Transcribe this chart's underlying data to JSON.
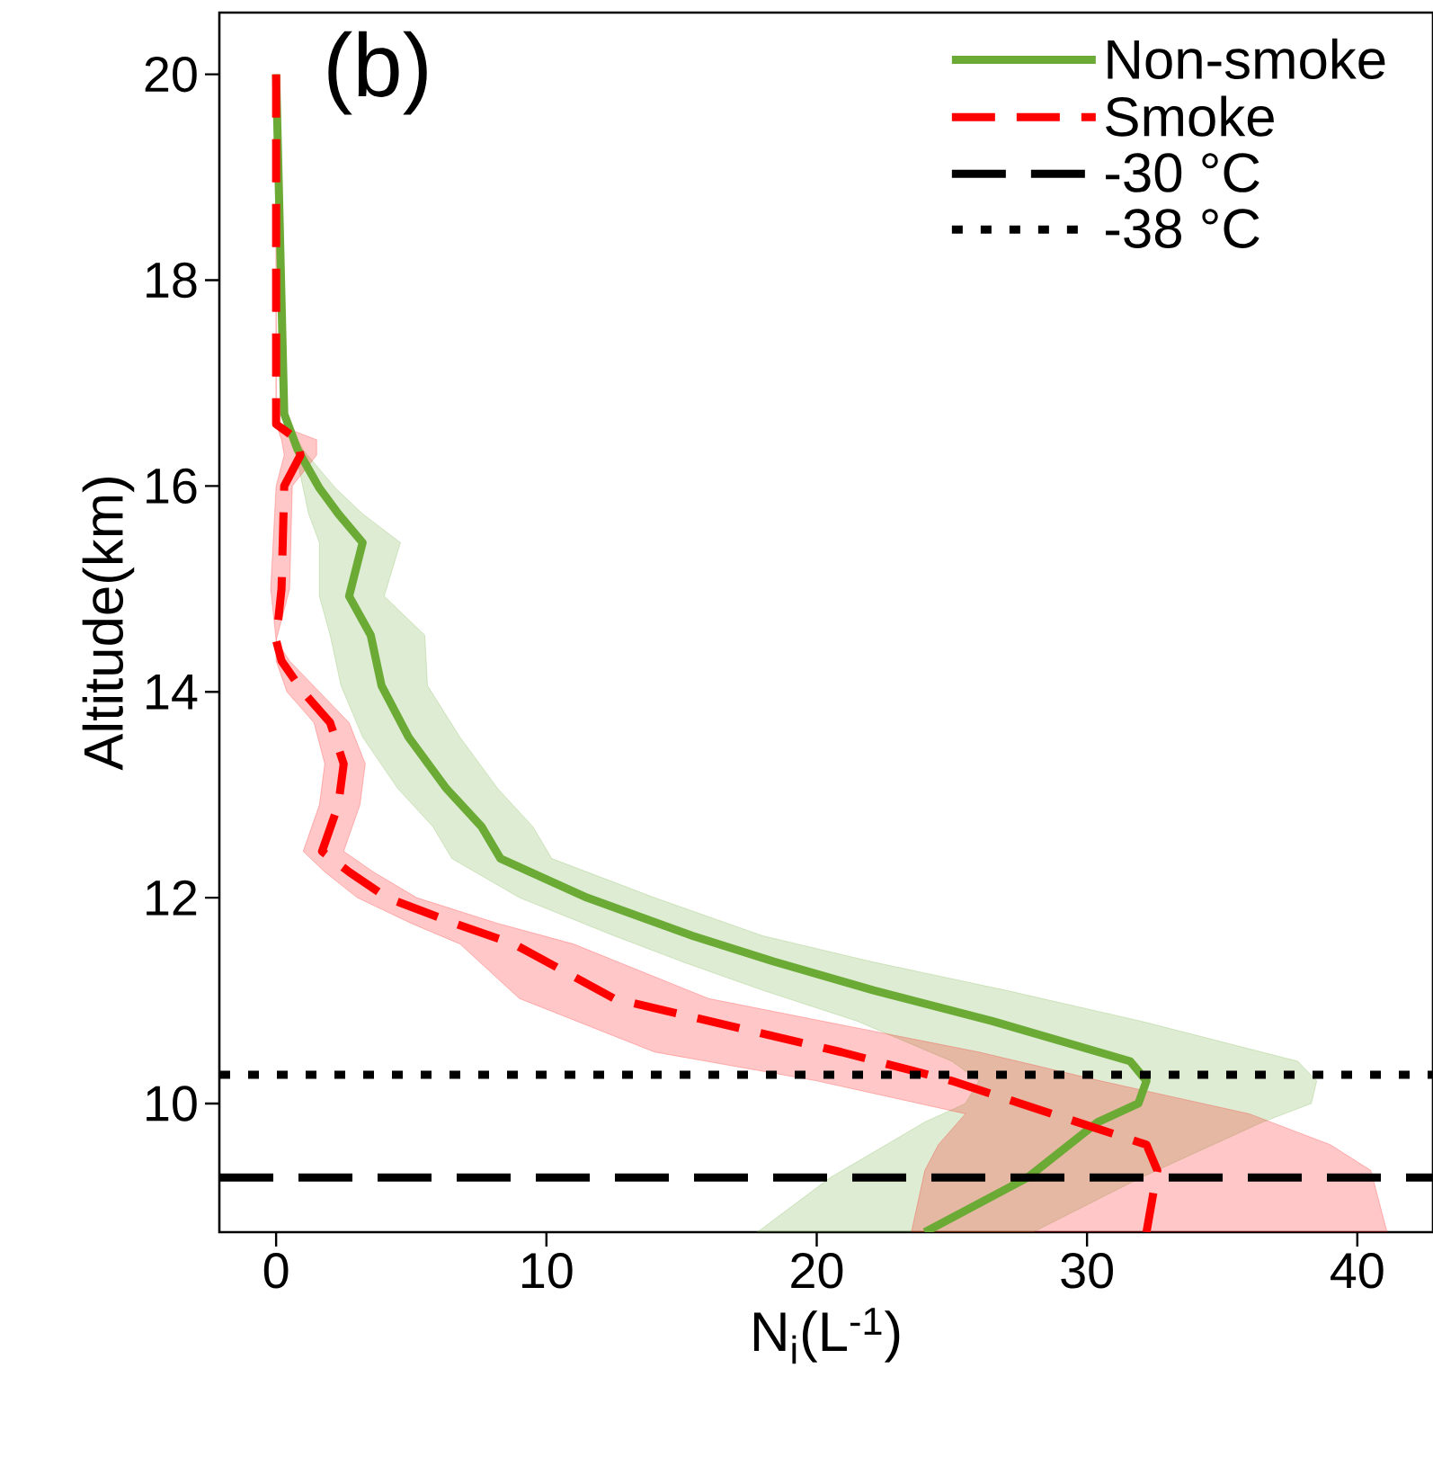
{
  "chart_data": {
    "type": "line",
    "orientation": "horizontal",
    "xlabel": "N$_{i}$(L$^{-1}$)",
    "ylabel": "Altitude(km)",
    "annotations": [
      "(b)"
    ],
    "xlim": [
      -2.1,
      42.8
    ],
    "ylim": [
      8.75,
      20.6
    ],
    "xticks": [
      0,
      10,
      20,
      30,
      40
    ],
    "yticks": [
      10,
      12,
      14,
      16,
      18,
      20
    ],
    "legend": "top right",
    "grid": false,
    "series": [
      {
        "name": "Non-smoke",
        "color": "#6aaa35",
        "line_style": "solid",
        "x": [
          20,
          16.7,
          16.35,
          15.98,
          15.73,
          15.45,
          14.93,
          14.55,
          14.06,
          13.56,
          13.06,
          12.69,
          12.38,
          12.0,
          11.63,
          11.38,
          11.1,
          10.8,
          10.41,
          10.22,
          10.0,
          9.82,
          9.28,
          8.75
        ],
        "values": [
          0,
          0.3,
          0.8,
          1.6,
          2.3,
          3.2,
          2.7,
          3.5,
          3.9,
          4.9,
          6.3,
          7.6,
          8.3,
          11.5,
          15.4,
          18.4,
          22.1,
          26.5,
          31.6,
          32.2,
          31.9,
          30.4,
          27.8,
          24.0
        ],
        "lower": [
          0,
          0.3,
          0.7,
          1.0,
          1.2,
          1.6,
          1.6,
          2.0,
          2.4,
          3.2,
          4.5,
          5.8,
          6.5,
          9.0,
          12.5,
          15.0,
          18.0,
          21.5,
          25.0,
          26.0,
          25.5,
          24.0,
          20.5,
          17.8
        ],
        "upper": [
          0,
          0.3,
          1.0,
          2.2,
          3.2,
          4.6,
          4.0,
          5.5,
          5.6,
          6.8,
          8.2,
          9.5,
          10.2,
          14.0,
          18.0,
          22.0,
          27.0,
          32.0,
          37.8,
          38.5,
          38.3,
          36.5,
          32.0,
          28.0
        ]
      },
      {
        "name": "Smoke",
        "color": "#ff0000",
        "line_style": "dashed",
        "x": [
          20,
          16.6,
          16.45,
          16.3,
          16.0,
          15.0,
          14.5,
          14.3,
          14.0,
          13.7,
          13.3,
          12.9,
          12.45,
          12.25,
          12.0,
          11.75,
          11.55,
          11.02,
          10.5,
          10.22,
          9.9,
          9.6,
          9.35,
          8.75
        ],
        "values": [
          0,
          0,
          0.8,
          0.9,
          0.3,
          0.2,
          0,
          0.2,
          1.0,
          2.0,
          2.5,
          2.3,
          1.7,
          2.7,
          4.1,
          6.6,
          8.8,
          12.5,
          20.9,
          25.0,
          28.7,
          32.2,
          32.6,
          32.2
        ],
        "lower": [
          0,
          0,
          0.2,
          0.3,
          0,
          -0.2,
          0,
          0,
          0.4,
          1.4,
          1.8,
          1.6,
          1.0,
          1.8,
          3.0,
          5.0,
          6.8,
          9.0,
          14.0,
          20.0,
          25.5,
          24.5,
          24.0,
          23.5
        ],
        "upper": [
          0,
          0,
          1.5,
          1.5,
          0.6,
          0.5,
          0,
          0.5,
          1.6,
          2.7,
          3.3,
          3.1,
          2.5,
          3.6,
          5.2,
          8.2,
          11.0,
          16.0,
          26.0,
          30.5,
          36.0,
          39.0,
          40.5,
          41.1
        ]
      }
    ],
    "ref_lines": [
      {
        "axis": "y",
        "value": 9.28,
        "label": "-30 °C",
        "color": "#000000",
        "line_style": "dashed"
      },
      {
        "axis": "y",
        "value": 10.28,
        "label": "-38 °C",
        "color": "#000000",
        "line_style": "dotted"
      }
    ]
  }
}
